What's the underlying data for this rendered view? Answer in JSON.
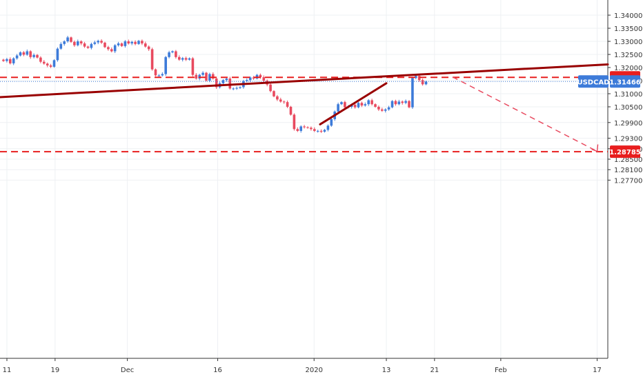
{
  "chart_data": {
    "type": "candlestick",
    "symbol": "USDCAD",
    "last_price": "1.31466",
    "price_axis": {
      "ticks": [
        "1.34000",
        "1.33500",
        "1.33000",
        "1.32500",
        "1.32000",
        "1.31500",
        "1.31000",
        "1.30500",
        "1.29900",
        "1.29300",
        "1.28900",
        "1.28500",
        "1.28100",
        "1.27700"
      ],
      "ylim": [
        1.2735,
        1.3435
      ]
    },
    "time_axis": {
      "ticks": [
        "11",
        "19",
        "Dec",
        "16",
        "2020",
        "13",
        "21",
        "Feb",
        "17"
      ]
    },
    "horizontal_levels": [
      {
        "label": "1.31625",
        "value": 1.31625,
        "color": "#e81e1e",
        "style": "dashed"
      },
      {
        "label": "1.28785",
        "value": 1.28785,
        "color": "#e81e1e",
        "style": "dashed"
      }
    ],
    "trendlines": [
      {
        "name": "rising trendline",
        "from": {
          "date": "Nov 8",
          "price": 1.3087
        },
        "to": {
          "date": "Feb 27",
          "price": 1.3212
        },
        "color": "#990000"
      },
      {
        "name": "rally line",
        "from": {
          "date": "Jan 2",
          "price": 1.2983
        },
        "to": {
          "date": "Jan 13",
          "price": 1.314
        },
        "color": "#990000"
      }
    ],
    "projection": {
      "from": {
        "date": "Jan 24",
        "price": 1.3164
      },
      "to": {
        "date": "Feb 17",
        "price": 1.288
      },
      "color": "#e84a5f",
      "style": "dashed arrow"
    },
    "candle_colors": {
      "up": "#3d7bd9",
      "down": "#e84a5f"
    },
    "closes": [
      1.3225,
      1.3232,
      1.3216,
      1.3235,
      1.3246,
      1.3258,
      1.3249,
      1.3262,
      1.324,
      1.3248,
      1.3238,
      1.3222,
      1.3215,
      1.3208,
      1.3203,
      1.3228,
      1.3272,
      1.329,
      1.33,
      1.3315,
      1.3298,
      1.3285,
      1.33,
      1.3292,
      1.328,
      1.3275,
      1.329,
      1.3296,
      1.3302,
      1.3295,
      1.3278,
      1.327,
      1.3262,
      1.3285,
      1.3292,
      1.3282,
      1.33,
      1.3292,
      1.3298,
      1.329,
      1.3302,
      1.3292,
      1.328,
      1.327,
      1.3193,
      1.317,
      1.317,
      1.3175,
      1.324,
      1.3258,
      1.3262,
      1.324,
      1.323,
      1.3236,
      1.323,
      1.3235,
      1.3172,
      1.3158,
      1.3172,
      1.318,
      1.315,
      1.3175,
      1.3158,
      1.3125,
      1.314,
      1.3152,
      1.3158,
      1.312,
      1.312,
      1.3122,
      1.3125,
      1.3148,
      1.3152,
      1.3162,
      1.3158,
      1.3172,
      1.3163,
      1.315,
      1.3135,
      1.311,
      1.309,
      1.3078,
      1.307,
      1.3068,
      1.305,
      1.302,
      1.2965,
      1.2958,
      1.2975,
      1.2972,
      1.297,
      1.2965,
      1.2958,
      1.2958,
      1.2955,
      1.2962,
      1.2978,
      1.3003,
      1.3032,
      1.306,
      1.3068,
      1.3048,
      1.305,
      1.3058,
      1.3048,
      1.3065,
      1.3055,
      1.306,
      1.3075,
      1.306,
      1.305,
      1.304,
      1.3035,
      1.304,
      1.3048,
      1.3072,
      1.306,
      1.307,
      1.3065,
      1.3072,
      1.3048,
      1.316,
      1.3168,
      1.3152,
      1.3136,
      1.3146
    ]
  }
}
